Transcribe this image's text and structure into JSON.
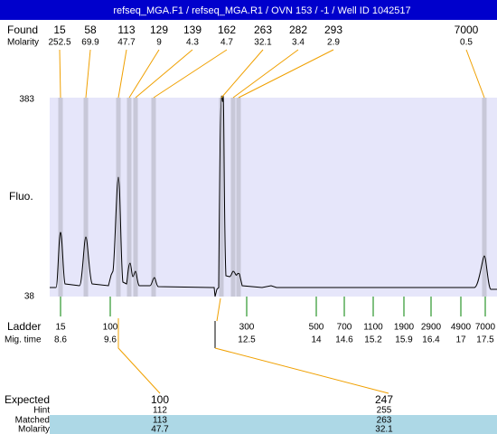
{
  "header": {
    "title": "refseq_MGA.F1 / refseq_MGA.R1 / OVN 153 / -1 / Well ID 1042517"
  },
  "found": {
    "label": "Found",
    "sizes": [
      15,
      58,
      113,
      129,
      139,
      162,
      263,
      282,
      293,
      7000
    ],
    "molarity_label": "Molarity",
    "molarity": [
      252.5,
      69.9,
      47.7,
      9,
      4.3,
      4.7,
      32.1,
      3.4,
      2.9,
      0.5
    ]
  },
  "axis": {
    "label": "Fluo.",
    "top": 383,
    "bottom": 38
  },
  "ladder": {
    "label": "Ladder",
    "sizes": [
      15,
      100,
      300,
      500,
      700,
      1100,
      1900,
      2900,
      4900,
      7000
    ],
    "mig_label": "Mig. time",
    "mig_times": [
      8.6,
      9.6,
      12.5,
      14,
      14.6,
      15.2,
      15.9,
      16.4,
      17,
      17.5
    ]
  },
  "expected": {
    "label": "Expected",
    "values": [
      100,
      247
    ],
    "hint_label": "Hint",
    "hint": [
      112,
      255
    ],
    "matched_label": "Matched",
    "matched": [
      113,
      263
    ],
    "molarity_label": "Molarity",
    "molarity": [
      47.7,
      32.1
    ]
  }
}
